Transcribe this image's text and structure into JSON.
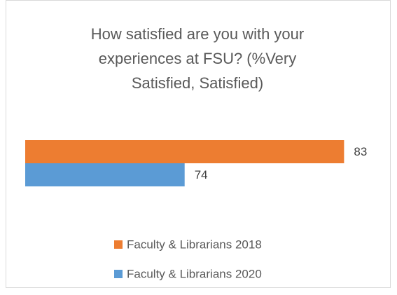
{
  "chart_data": {
    "type": "hbar",
    "title": "How satisfied are you with your experiences at FSU? (%Very Satisfied, Satisfied)",
    "categories": [
      null
    ],
    "series": [
      {
        "name": "Faculty & Librarians 2018",
        "color": "#ed7d31",
        "values": [
          83
        ]
      },
      {
        "name": "Faculty & Librarians 2020",
        "color": "#5b9bd5",
        "values": [
          74
        ]
      }
    ],
    "xlim": [
      65,
      85
    ]
  }
}
